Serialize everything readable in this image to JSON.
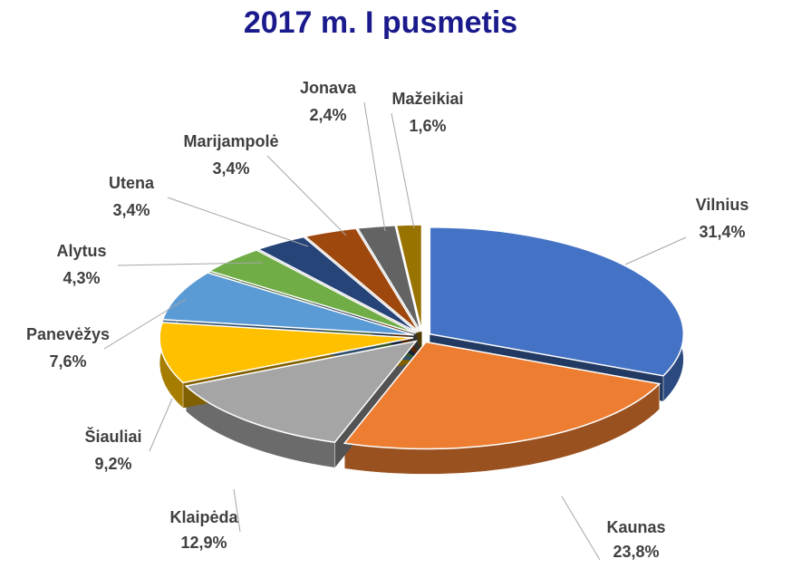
{
  "chart_data": {
    "type": "pie",
    "title": "2017 m. I pusmetis",
    "categories": [
      "Vilnius",
      "Kaunas",
      "Klaipėda",
      "Šiauliai",
      "Panevėžys",
      "Alytus",
      "Utena",
      "Marijampolė",
      "Jonava",
      "Mažeikiai"
    ],
    "values": [
      31.4,
      23.8,
      12.9,
      9.2,
      7.6,
      4.3,
      3.4,
      3.4,
      2.4,
      1.6
    ],
    "value_labels": [
      "31,4%",
      "23,8%",
      "12,9%",
      "9,2%",
      "7,6%",
      "4,3%",
      "3,4%",
      "3,4%",
      "2,4%",
      "1,6%"
    ],
    "colors": [
      "#4472c4",
      "#ed7d31",
      "#a5a5a5",
      "#ffc000",
      "#5b9bd5",
      "#70ad47",
      "#264478",
      "#9e480e",
      "#636363",
      "#997300"
    ]
  }
}
